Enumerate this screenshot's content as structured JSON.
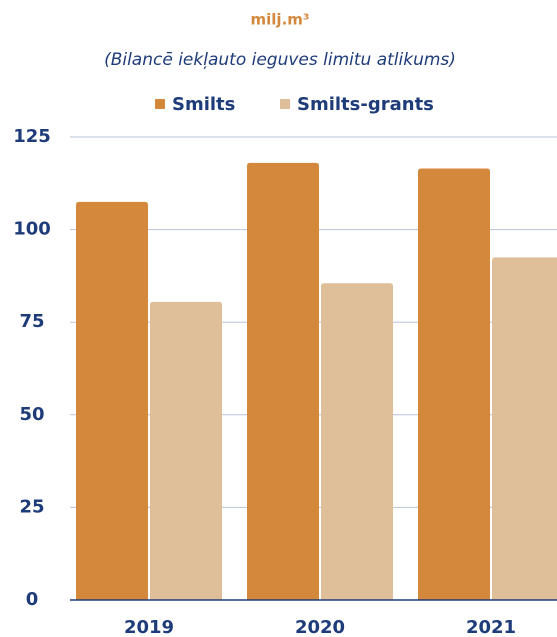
{
  "chart_data": {
    "type": "bar",
    "title": "milj.m³",
    "subtitle": "(Bilancē iekļauto ieguves limitu atlikums)",
    "categories": [
      "2019",
      "2020",
      "2021"
    ],
    "series": [
      {
        "name": "Smilts",
        "color": "#d4883c",
        "values": [
          107.5,
          118,
          116.5
        ]
      },
      {
        "name": "Smilts-grants",
        "color": "#dfbf9a",
        "values": [
          80.5,
          85.5,
          92.5
        ]
      }
    ],
    "ylim": [
      0,
      125
    ],
    "yticks": [
      0,
      25,
      50,
      75,
      100,
      125
    ],
    "grid": true,
    "legend": "top"
  }
}
